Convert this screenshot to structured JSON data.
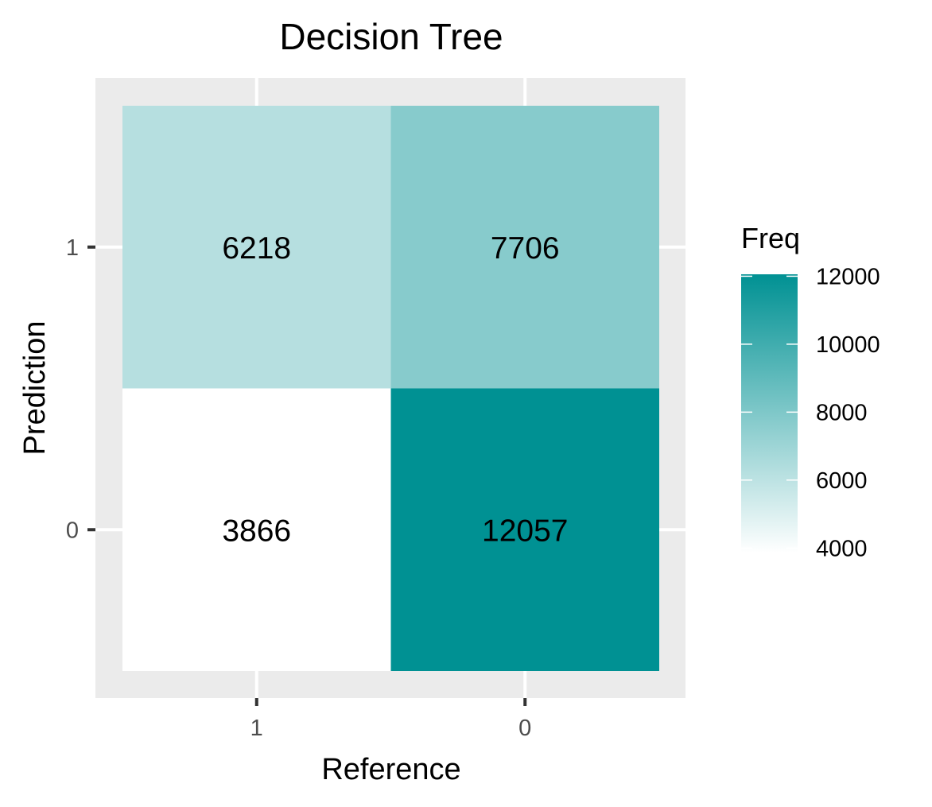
{
  "chart_data": {
    "type": "heatmap",
    "title": "Decision Tree",
    "xlabel": "Reference",
    "ylabel": "Prediction",
    "x_categories": [
      "1",
      "0"
    ],
    "y_categories": [
      "1",
      "0"
    ],
    "cells": [
      {
        "x": "1",
        "y": "1",
        "value": 6218
      },
      {
        "x": "0",
        "y": "1",
        "value": 7706
      },
      {
        "x": "1",
        "y": "0",
        "value": 3866
      },
      {
        "x": "0",
        "y": "0",
        "value": 12057
      }
    ],
    "legend": {
      "title": "Freq",
      "ticks": [
        12000,
        10000,
        8000,
        6000,
        4000
      ],
      "tick_labels": [
        "12000",
        "10000",
        "8000",
        "6000",
        "4000"
      ],
      "range": [
        3866,
        12057
      ],
      "low_color": "#ffffff",
      "high_color": "#009193"
    },
    "panel_background": "#ebebeb",
    "grid": true,
    "legend_position": "right"
  }
}
